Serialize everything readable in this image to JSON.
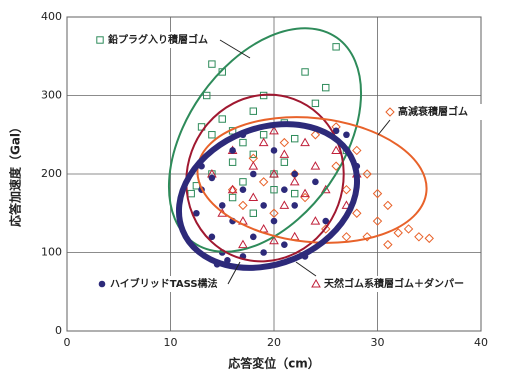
{
  "chart_data": {
    "type": "scatter",
    "xlabel": "応答変位（cm）",
    "ylabel": "応答加速度（Gal）",
    "xlim": [
      0,
      40
    ],
    "ylim": [
      0,
      400
    ],
    "xticks": [
      0,
      10,
      20,
      30,
      40
    ],
    "yticks": [
      0,
      100,
      200,
      300,
      400
    ],
    "grid": true,
    "series": [
      {
        "name": "鉛プラグ入り積層ゴム",
        "color": "#2e8b5a",
        "marker": "square",
        "x": [
          12,
          12.5,
          13,
          13.5,
          14,
          14,
          15,
          15,
          16,
          16,
          17,
          17,
          18,
          18,
          19,
          19,
          20,
          20,
          21,
          21,
          22,
          22,
          23,
          24,
          25,
          26,
          27,
          16,
          14,
          18
        ],
        "values": [
          175,
          185,
          260,
          300,
          340,
          250,
          330,
          270,
          255,
          215,
          240,
          190,
          280,
          225,
          300,
          250,
          200,
          180,
          265,
          215,
          245,
          175,
          330,
          290,
          310,
          362,
          230,
          170,
          200,
          150
        ]
      },
      {
        "name": "高減衰積層ゴム",
        "color": "#e8622a",
        "marker": "diamond",
        "x": [
          16,
          17,
          18,
          19,
          20,
          21,
          22,
          23,
          24,
          25,
          26,
          26,
          27,
          28,
          28,
          29,
          29,
          30,
          30,
          31,
          31,
          32,
          33,
          34,
          35,
          27
        ],
        "values": [
          180,
          160,
          220,
          190,
          150,
          240,
          200,
          170,
          250,
          130,
          260,
          210,
          180,
          150,
          230,
          200,
          120,
          140,
          175,
          110,
          160,
          125,
          130,
          120,
          118,
          120
        ]
      },
      {
        "name": "天然ゴム系積層ゴム＋ダンパー",
        "color": "#c0203a",
        "marker": "triangle",
        "x": [
          14,
          15,
          16,
          16,
          17,
          18,
          18,
          19,
          19,
          20,
          20,
          21,
          21,
          22,
          22,
          23,
          23,
          24,
          24,
          25,
          26,
          27,
          28,
          17,
          20
        ],
        "values": [
          200,
          150,
          230,
          180,
          140,
          210,
          170,
          240,
          130,
          255,
          200,
          225,
          160,
          190,
          120,
          240,
          175,
          210,
          140,
          180,
          230,
          160,
          200,
          110,
          115
        ]
      },
      {
        "name": "ハイブリッドTASS構法",
        "color": "#2d2a7a",
        "marker": "circle",
        "x": [
          12.5,
          13,
          13,
          14,
          14,
          15,
          15,
          15.5,
          16,
          16,
          17,
          17,
          17,
          18,
          18,
          19,
          19,
          20,
          20,
          21,
          21,
          22,
          22,
          23,
          24,
          25,
          26,
          27,
          28,
          14.5
        ],
        "values": [
          150,
          180,
          210,
          195,
          120,
          100,
          160,
          90,
          230,
          140,
          250,
          180,
          95,
          200,
          120,
          160,
          100,
          230,
          140,
          180,
          110,
          200,
          160,
          95,
          190,
          140,
          255,
          250,
          210,
          85
        ]
      }
    ]
  }
}
